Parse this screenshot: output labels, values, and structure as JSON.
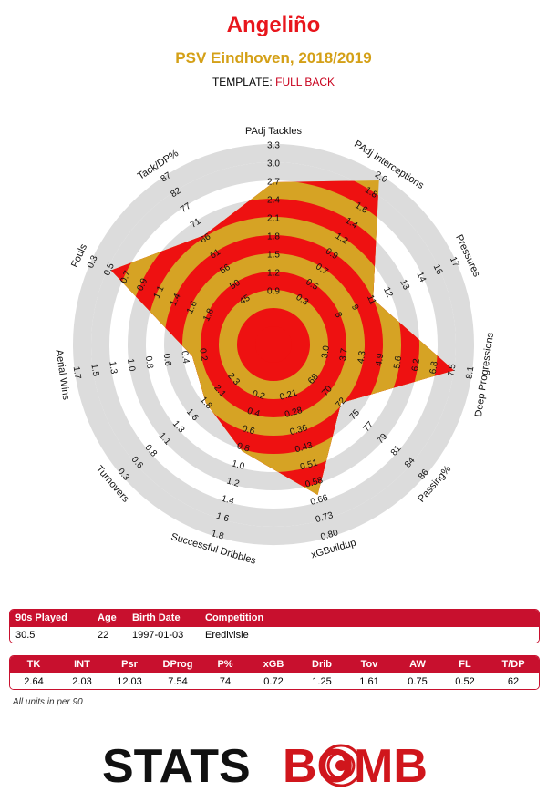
{
  "header": {
    "player_name": "Angeliño",
    "team_season": "PSV Eindhoven, 2018/2019",
    "template_label": "TEMPLATE:",
    "template_value": "FULL BACK"
  },
  "colors": {
    "red": "#ee1111",
    "gold": "#d6a324",
    "ring_grey": "#dcdcdc",
    "header_red": "#c8102e",
    "title_red": "#e8151c",
    "subtitle_gold": "#d4a017"
  },
  "chart_data": {
    "type": "radar",
    "axes": [
      {
        "label": "PAdj Tackles",
        "value": 2.64,
        "ticks": [
          "0.9",
          "1.2",
          "1.5",
          "1.8",
          "2.1",
          "2.4",
          "2.7",
          "3.0",
          "3.3"
        ]
      },
      {
        "label": "PAdj Interceptions",
        "value": 2.03,
        "ticks": [
          "0.3",
          "0.5",
          "0.7",
          "0.9",
          "1.2",
          "1.4",
          "1.6",
          "1.8",
          "2.0"
        ]
      },
      {
        "label": "Pressures",
        "value": 12.03,
        "ticks": [
          "8",
          "9",
          "11",
          "12",
          "13",
          "14",
          "16",
          "17"
        ]
      },
      {
        "label": "Deep Progressions",
        "value": 7.54,
        "ticks": [
          "3.0",
          "3.7",
          "4.3",
          "4.9",
          "5.6",
          "6.2",
          "6.8",
          "7.5",
          "8.1"
        ]
      },
      {
        "label": "Passing%",
        "value": 74,
        "ticks": [
          "68",
          "70",
          "72",
          "75",
          "77",
          "79",
          "81",
          "84",
          "86"
        ]
      },
      {
        "label": "xGBuildup",
        "value": 0.72,
        "ticks": [
          "0.21",
          "0.28",
          "0.36",
          "0.43",
          "0.51",
          "0.58",
          "0.66",
          "0.73",
          "0.80"
        ]
      },
      {
        "label": "Successful Dribbles",
        "value": 1.25,
        "ticks": [
          "0.2",
          "0.4",
          "0.6",
          "0.8",
          "1.0",
          "1.2",
          "1.4",
          "1.6",
          "1.8"
        ]
      },
      {
        "label": "Turnovers",
        "value": 1.61,
        "ticks": [
          "2.3",
          "2.1",
          "1.8",
          "1.6",
          "1.3",
          "1.1",
          "0.8",
          "0.6",
          "0.3"
        ]
      },
      {
        "label": "Aerial Wins",
        "value": 0.75,
        "ticks": [
          "0.2",
          "0.4",
          "0.6",
          "0.8",
          "1.0",
          "1.3",
          "1.5",
          "1.7"
        ]
      },
      {
        "label": "Fouls",
        "value": 0.52,
        "ticks": [
          "1.8",
          "1.6",
          "1.4",
          "1.1",
          "0.9",
          "0.7",
          "0.5",
          "0.3"
        ]
      },
      {
        "label": "Tack/DP%",
        "value": 62,
        "ticks": [
          "45",
          "50",
          "56",
          "61",
          "66",
          "71",
          "77",
          "82",
          "87"
        ]
      }
    ],
    "profile_fractions": [
      0.79,
      0.97,
      0.5,
      0.9,
      0.39,
      0.76,
      0.51,
      0.39,
      0.35,
      0.88,
      0.61
    ]
  },
  "info_table": {
    "headers": [
      "90s Played",
      "Age",
      "Birth Date",
      "Competition"
    ],
    "values": [
      "30.5",
      "22",
      "1997-01-03",
      "Eredivisie"
    ]
  },
  "stats_table": {
    "headers": [
      "TK",
      "INT",
      "Psr",
      "DProg",
      "P%",
      "xGB",
      "Drib",
      "Tov",
      "AW",
      "FL",
      "T/DP"
    ],
    "values": [
      "2.64",
      "2.03",
      "12.03",
      "7.54",
      "74",
      "0.72",
      "1.25",
      "1.61",
      "0.75",
      "0.52",
      "62"
    ]
  },
  "footer": {
    "units_note": "All units in per 90",
    "logo_text_left": "STATS",
    "logo_text_right": "BOMB"
  }
}
